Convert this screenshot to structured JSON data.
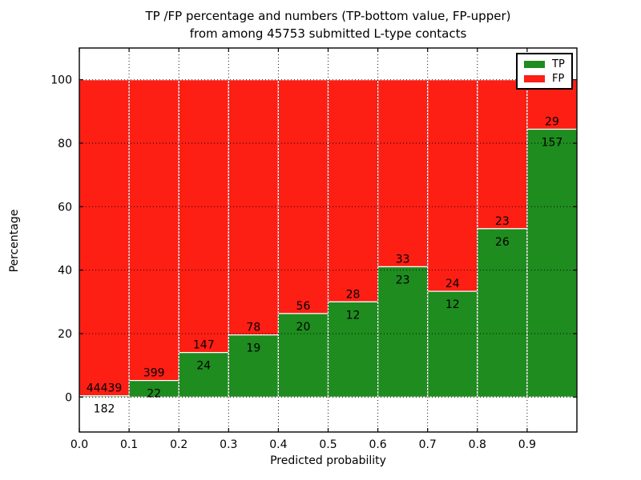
{
  "title": {
    "line1": "TP /FP percentage and numbers (TP-bottom value, FP-upper)",
    "line2": "from among 45753 submitted L-type contacts"
  },
  "chart_data": {
    "type": "bar",
    "stacked": true,
    "unit": "percent (TP+FP normalized to 100% per bin)",
    "title": "TP /FP percentage and numbers (TP-bottom value, FP-upper)\nfrom among 45753 submitted L-type contacts",
    "total_contacts": "45753",
    "xlabel": "Predicted probability",
    "ylabel": "Percentage",
    "bin_edges": [
      0.0,
      0.1,
      0.2,
      0.3,
      0.4,
      0.5,
      0.6,
      0.7,
      0.8,
      0.9,
      1.0
    ],
    "categories": [
      "0.0-0.1",
      "0.1-0.2",
      "0.2-0.3",
      "0.3-0.4",
      "0.4-0.5",
      "0.5-0.6",
      "0.6-0.7",
      "0.7-0.8",
      "0.8-0.9",
      "0.9-1.0"
    ],
    "series": [
      {
        "name": "TP",
        "color": "#1e8c1e",
        "counts": [
          182,
          22,
          24,
          19,
          20,
          12,
          23,
          12,
          26,
          157
        ],
        "percent": [
          0.41,
          5.23,
          14.04,
          19.59,
          26.32,
          30.0,
          41.07,
          33.33,
          53.06,
          84.41
        ]
      },
      {
        "name": "FP",
        "color": "#fd1e14",
        "counts": [
          44439,
          399,
          147,
          78,
          56,
          28,
          33,
          24,
          23,
          29
        ],
        "percent": [
          99.59,
          94.77,
          85.96,
          80.41,
          73.68,
          70.0,
          58.93,
          66.67,
          46.94,
          15.59
        ]
      }
    ],
    "x_ticks": [
      0.0,
      0.1,
      0.2,
      0.3,
      0.4,
      0.5,
      0.6,
      0.7,
      0.8,
      0.9
    ],
    "x_tick_labels": [
      "0.0",
      "0.1",
      "0.2",
      "0.3",
      "0.4",
      "0.5",
      "0.6",
      "0.7",
      "0.8",
      "0.9"
    ],
    "y_ticks": [
      0,
      20,
      40,
      60,
      80,
      100
    ],
    "y_tick_labels": [
      "0",
      "20",
      "40",
      "60",
      "80",
      "100"
    ],
    "xlim": [
      0.0,
      1.0
    ],
    "ylim": [
      -11,
      110
    ],
    "grid": true,
    "gridline_style": "dotted",
    "bar_edge_color": "#ffffff",
    "legend": {
      "position": "upper right",
      "items": [
        {
          "label": "TP",
          "color": "#1e8c1e"
        },
        {
          "label": "FP",
          "color": "#fd1e14"
        }
      ]
    }
  }
}
